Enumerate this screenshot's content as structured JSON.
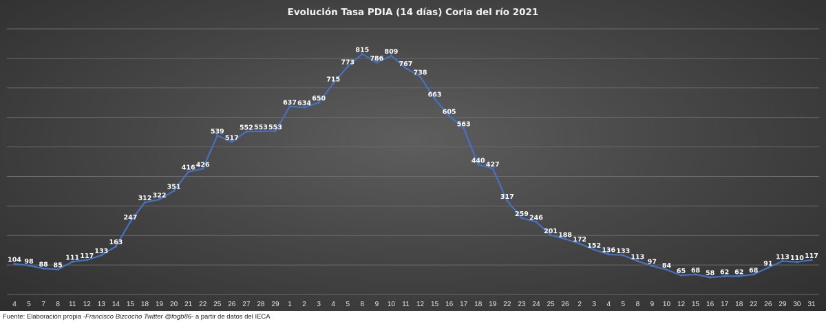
{
  "footer": {
    "prefix": "Fuente: Elaboración propia -",
    "author": "Francisco Bizcocho Twitter @fogb86",
    "suffix": "- a partir de datos del IECA"
  },
  "chart_data": {
    "type": "line",
    "title": "Evolución Tasa PDIA (14 días) Coria del río 2021",
    "xlabel": "",
    "ylabel": "",
    "ylim": [
      0,
      900
    ],
    "grid": true,
    "legend": "none",
    "colors": {
      "line": "#4472c4",
      "background": "#474747"
    },
    "categories": [
      "4",
      "5",
      "7",
      "8",
      "11",
      "12",
      "13",
      "14",
      "15",
      "18",
      "19",
      "20",
      "21",
      "22",
      "25",
      "26",
      "27",
      "28",
      "29",
      "1",
      "2",
      "3",
      "4",
      "5",
      "8",
      "9",
      "10",
      "11",
      "12",
      "15",
      "16",
      "17",
      "18",
      "19",
      "22",
      "23",
      "24",
      "25",
      "26",
      "2",
      "3",
      "4",
      "5",
      "8",
      "9",
      "10",
      "12",
      "15",
      "16",
      "17",
      "18",
      "22",
      "26",
      "29",
      "30",
      "31"
    ],
    "series": [
      {
        "values": [
          104,
          98,
          88,
          85,
          111,
          117,
          133,
          163,
          247,
          312,
          322,
          351,
          416,
          426,
          539,
          517,
          552,
          553,
          553,
          637,
          634,
          650,
          715,
          773,
          815,
          786,
          809,
          767,
          738,
          663,
          605,
          563,
          440,
          427,
          317,
          259,
          246,
          201,
          188,
          172,
          152,
          136,
          133,
          113,
          97,
          84,
          65,
          68,
          58,
          62,
          62,
          68,
          91,
          113,
          110,
          117
        ]
      }
    ]
  }
}
